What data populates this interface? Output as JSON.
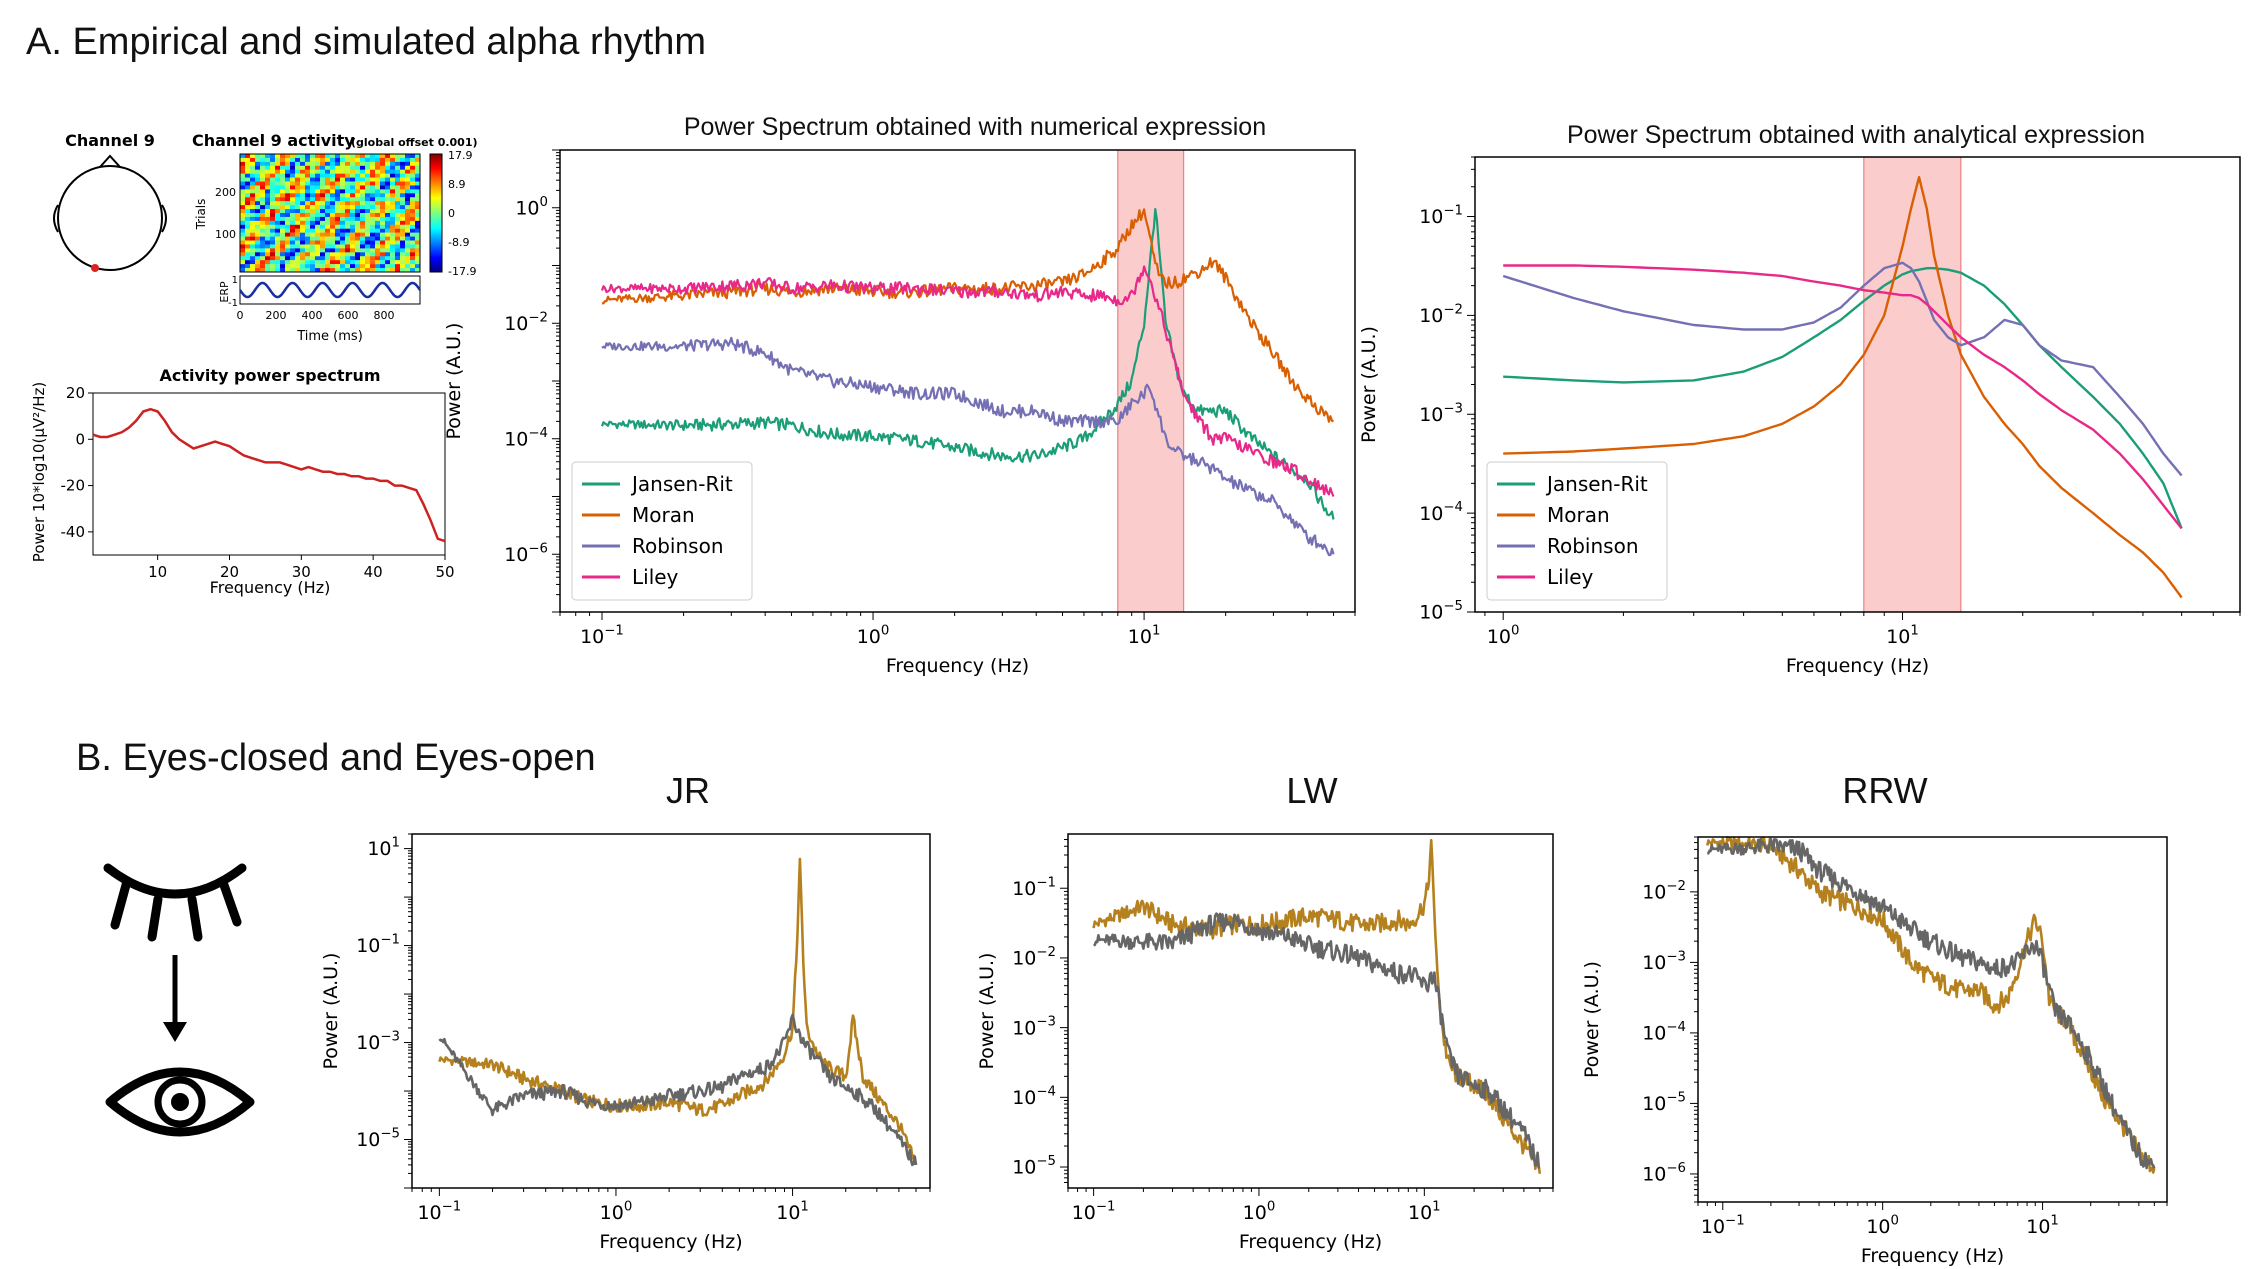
{
  "sections": {
    "a_title": "A. Empirical and simulated alpha rhythm",
    "b_title": "B. Eyes-closed and Eyes-open"
  },
  "eeglab": {
    "channel_label": "Channel 9",
    "erp_image_title": "Channel 9 activity",
    "erp_image_note": "(global offset 0.001)",
    "trials_label": "Trials",
    "trial_ticks": [
      "200",
      "100"
    ],
    "colorbar_ticks": [
      "17.9",
      "8.9",
      "0",
      "-8.9",
      "-17.9"
    ],
    "erp_label": "ERP",
    "erp_ticks": [
      "1",
      "-1"
    ],
    "time_label": "Time (ms)",
    "time_ticks": [
      "0",
      "200",
      "400",
      "600",
      "800"
    ],
    "spectrum_title": "Activity power spectrum",
    "spectrum_ylabel": "Power 10*log10(μV²/Hz)",
    "spectrum_xlabel": "Frequency (Hz)",
    "spectrum_yticks": [
      "20",
      "0",
      "-20",
      "-40"
    ],
    "spectrum_xticks": [
      "10",
      "20",
      "30",
      "40",
      "50"
    ]
  },
  "colors": {
    "jansen_rit": "#1b9e77",
    "moran": "#d95f02",
    "robinson": "#7570b3",
    "liley": "#e7298a",
    "eyes_closed": "#b5811f",
    "eyes_open": "#666666",
    "alpha_band": "#f7a3a3",
    "eeg_spectrum": "#cc2222"
  },
  "chart_data": [
    {
      "id": "eeglab_spectrum",
      "type": "line",
      "title": "Activity power spectrum",
      "xlabel": "Frequency (Hz)",
      "ylabel": "Power 10*log10(μV²/Hz)",
      "xlim": [
        1,
        50
      ],
      "ylim": [
        -50,
        20
      ],
      "series": [
        {
          "x": [
            1,
            2,
            3,
            4,
            5,
            6,
            7,
            8,
            9,
            10,
            11,
            12,
            13,
            14,
            15,
            16,
            17,
            18,
            19,
            20,
            21,
            22,
            23,
            24,
            25,
            26,
            27,
            28,
            29,
            30,
            31,
            32,
            33,
            34,
            35,
            36,
            37,
            38,
            39,
            40,
            41,
            42,
            43,
            44,
            45,
            46,
            47,
            48,
            49,
            50
          ],
          "values": [
            2,
            1,
            1,
            2,
            3,
            5,
            8,
            12,
            13,
            12,
            8,
            3,
            0,
            -2,
            -4,
            -3,
            -2,
            -1,
            -2,
            -3,
            -5,
            -7,
            -8,
            -9,
            -10,
            -10,
            -10,
            -11,
            -12,
            -13,
            -12,
            -13,
            -14,
            -14,
            -15,
            -15,
            -16,
            -16,
            -17,
            -17,
            -18,
            -18,
            -20,
            -20,
            -21,
            -22,
            -28,
            -35,
            -43,
            -44
          ]
        }
      ]
    },
    {
      "id": "numerical",
      "type": "line",
      "title": "Power Spectrum obtained with numerical expression",
      "xlabel": "Frequency (Hz)",
      "ylabel": "Power (A.U.)",
      "xscale": "log",
      "yscale": "log",
      "xlim": [
        0.07,
        60
      ],
      "ylim": [
        1e-07,
        10
      ],
      "xticks": [
        "10^-1",
        "10^0",
        "10^1"
      ],
      "yticks": [
        "10^-6",
        "10^-4",
        "10^-2",
        "10^0"
      ],
      "shaded_band": [
        8,
        14
      ],
      "legend": "lower-left",
      "x": [
        0.1,
        0.2,
        0.3,
        0.4,
        0.5,
        0.7,
        1,
        1.5,
        2,
        3,
        4,
        5,
        6,
        7,
        8,
        9,
        10,
        10.5,
        11,
        11.5,
        12,
        13,
        14,
        16,
        18,
        20,
        25,
        30,
        35,
        40,
        45,
        50
      ],
      "series": [
        {
          "name": "Jansen-Rit",
          "color_key": "jansen_rit",
          "values": [
            0.00018,
            0.00017,
            0.00018,
            0.00019,
            0.00017,
            0.00012,
            0.00011,
            9e-05,
            7e-05,
            5e-05,
            5e-05,
            7e-05,
            0.0001,
            0.0002,
            0.0004,
            0.001,
            0.01,
            0.1,
            1,
            0.1,
            0.01,
            0.002,
            0.0006,
            0.0003,
            0.0003,
            0.0003,
            0.0001,
            5e-05,
            3e-05,
            2e-05,
            8e-06,
            4e-06
          ]
        },
        {
          "name": "Moran",
          "color_key": "moran",
          "values": [
            0.025,
            0.03,
            0.035,
            0.04,
            0.035,
            0.04,
            0.035,
            0.035,
            0.04,
            0.04,
            0.045,
            0.05,
            0.07,
            0.12,
            0.2,
            0.5,
            0.9,
            0.3,
            0.1,
            0.06,
            0.05,
            0.05,
            0.06,
            0.08,
            0.12,
            0.06,
            0.01,
            0.003,
            0.001,
            0.0005,
            0.0003,
            0.0002
          ]
        },
        {
          "name": "Robinson",
          "color_key": "robinson",
          "values": [
            0.004,
            0.004,
            0.0045,
            0.003,
            0.0015,
            0.001,
            0.0008,
            0.0006,
            0.0006,
            0.0003,
            0.0003,
            0.0002,
            0.0002,
            0.0002,
            0.0002,
            0.0004,
            0.0006,
            0.0008,
            0.0004,
            0.0002,
            0.0001,
            6e-05,
            5e-05,
            4e-05,
            3e-05,
            2e-05,
            1.2e-05,
            8e-06,
            4e-06,
            2e-06,
            1.5e-06,
            1e-06
          ]
        },
        {
          "name": "Liley",
          "color_key": "liley",
          "values": [
            0.04,
            0.04,
            0.045,
            0.05,
            0.04,
            0.045,
            0.04,
            0.04,
            0.035,
            0.035,
            0.03,
            0.035,
            0.03,
            0.03,
            0.025,
            0.03,
            0.1,
            0.06,
            0.03,
            0.015,
            0.008,
            0.002,
            0.0006,
            0.0002,
            0.0001,
            0.0001,
            6e-05,
            4e-05,
            3e-05,
            2e-05,
            1.5e-05,
            1e-05
          ]
        }
      ]
    },
    {
      "id": "analytical",
      "type": "line",
      "title": "Power Spectrum obtained with analytical expression",
      "xlabel": "Frequency (Hz)",
      "ylabel": "Power (A.U.)",
      "xscale": "log",
      "yscale": "log",
      "xlim": [
        0.85,
        70
      ],
      "ylim": [
        1e-05,
        0.4
      ],
      "xticks": [
        "10^0",
        "10^1"
      ],
      "yticks": [
        "10^-5",
        "10^-4",
        "10^-3",
        "10^-2",
        "10^-1"
      ],
      "shaded_band": [
        8,
        14
      ],
      "legend": "lower-left",
      "x": [
        1,
        1.5,
        2,
        3,
        4,
        5,
        6,
        7,
        8,
        9,
        10,
        10.5,
        11,
        11.5,
        12,
        13,
        14,
        16,
        18,
        20,
        22,
        25,
        30,
        35,
        40,
        45,
        50
      ],
      "series": [
        {
          "name": "Jansen-Rit",
          "color_key": "jansen_rit",
          "values": [
            0.0024,
            0.0022,
            0.0021,
            0.0022,
            0.0027,
            0.0038,
            0.006,
            0.009,
            0.014,
            0.02,
            0.026,
            0.028,
            0.029,
            0.03,
            0.03,
            0.029,
            0.027,
            0.02,
            0.013,
            0.008,
            0.005,
            0.003,
            0.0015,
            0.0008,
            0.0004,
            0.0002,
            7e-05
          ]
        },
        {
          "name": "Moran",
          "color_key": "moran",
          "values": [
            0.0004,
            0.00042,
            0.00045,
            0.0005,
            0.0006,
            0.0008,
            0.0012,
            0.002,
            0.004,
            0.01,
            0.05,
            0.12,
            0.25,
            0.12,
            0.04,
            0.01,
            0.004,
            0.0015,
            0.0008,
            0.0005,
            0.0003,
            0.00018,
            0.0001,
            6e-05,
            4e-05,
            2.5e-05,
            1.4e-05
          ]
        },
        {
          "name": "Robinson",
          "color_key": "robinson",
          "values": [
            0.025,
            0.015,
            0.011,
            0.008,
            0.0072,
            0.0072,
            0.0085,
            0.012,
            0.02,
            0.03,
            0.034,
            0.03,
            0.022,
            0.014,
            0.009,
            0.006,
            0.005,
            0.006,
            0.009,
            0.008,
            0.005,
            0.0035,
            0.003,
            0.0015,
            0.0008,
            0.0004,
            0.00024
          ]
        },
        {
          "name": "Liley",
          "color_key": "liley",
          "values": [
            0.032,
            0.032,
            0.031,
            0.029,
            0.027,
            0.025,
            0.022,
            0.02,
            0.018,
            0.017,
            0.016,
            0.016,
            0.015,
            0.013,
            0.011,
            0.008,
            0.006,
            0.004,
            0.003,
            0.0022,
            0.0016,
            0.0011,
            0.0007,
            0.0004,
            0.00022,
            0.00012,
            7e-05
          ]
        }
      ]
    },
    {
      "id": "jr",
      "type": "line",
      "title": "JR",
      "xlabel": "Frequency (Hz)",
      "ylabel": "Power (A.U.)",
      "xscale": "log",
      "yscale": "log",
      "xlim": [
        0.07,
        60
      ],
      "ylim": [
        1e-06,
        20
      ],
      "xticks": [
        "10^-1",
        "10^0",
        "10^1"
      ],
      "yticks": [
        "10^-5",
        "10^-3",
        "10^-1",
        "10^1"
      ],
      "x": [
        0.1,
        0.2,
        0.3,
        0.5,
        0.7,
        1,
        1.5,
        2,
        3,
        4,
        5,
        7,
        8,
        9,
        10,
        10.5,
        11,
        11.5,
        12,
        14,
        16,
        20,
        22,
        25,
        30,
        40,
        50
      ],
      "series": [
        {
          "color_key": "eyes_closed",
          "values": [
            0.00045,
            0.00035,
            0.00018,
            0.0001,
            6e-05,
            5e-05,
            5e-05,
            6e-05,
            4e-05,
            5e-05,
            8e-05,
            0.00015,
            0.0003,
            0.0006,
            0.002,
            0.05,
            5,
            0.05,
            0.002,
            0.0005,
            0.0003,
            0.0002,
            0.003,
            0.0002,
            8e-05,
            2e-05,
            3e-06
          ]
        },
        {
          "color_key": "eyes_open",
          "values": [
            0.0014,
            4e-05,
            8e-05,
            0.0001,
            6e-05,
            5e-05,
            6e-05,
            8e-05,
            0.0001,
            0.00012,
            0.0002,
            0.0003,
            0.0005,
            0.001,
            0.003,
            0.002,
            0.0015,
            0.001,
            0.0008,
            0.0004,
            0.0002,
            0.00012,
            0.0001,
            7e-05,
            4e-05,
            1e-05,
            3e-06
          ]
        }
      ]
    },
    {
      "id": "lw",
      "type": "line",
      "title": "LW",
      "xlabel": "Frequency (Hz)",
      "ylabel": "Power (A.U.)",
      "xscale": "log",
      "yscale": "log",
      "xlim": [
        0.07,
        60
      ],
      "ylim": [
        5e-06,
        0.6
      ],
      "xticks": [
        "10^-1",
        "10^0",
        "10^1"
      ],
      "yticks": [
        "10^-5",
        "10^-4",
        "10^-3",
        "10^-2",
        "10^-1"
      ],
      "x": [
        0.1,
        0.2,
        0.3,
        0.5,
        0.7,
        1,
        1.5,
        2,
        3,
        4,
        5,
        7,
        8,
        9,
        10,
        10.5,
        11,
        11.5,
        12,
        13,
        14,
        16,
        20,
        25,
        30,
        40,
        50
      ],
      "series": [
        {
          "color_key": "eyes_closed",
          "values": [
            0.03,
            0.055,
            0.03,
            0.025,
            0.03,
            0.03,
            0.035,
            0.04,
            0.035,
            0.03,
            0.03,
            0.035,
            0.03,
            0.04,
            0.06,
            0.1,
            0.4,
            0.05,
            0.005,
            0.0008,
            0.0003,
            0.0002,
            0.00015,
            0.0001,
            5e-05,
            2e-05,
            8e-06
          ]
        },
        {
          "color_key": "eyes_open",
          "values": [
            0.018,
            0.017,
            0.016,
            0.03,
            0.035,
            0.025,
            0.02,
            0.015,
            0.012,
            0.01,
            0.008,
            0.006,
            0.006,
            0.005,
            0.004,
            0.004,
            0.006,
            0.005,
            0.003,
            0.001,
            0.0004,
            0.0002,
            0.00015,
            0.00012,
            7e-05,
            3e-05,
            1e-05
          ]
        }
      ]
    },
    {
      "id": "rrw",
      "type": "line",
      "title": "RRW",
      "xlabel": "Frequency (Hz)",
      "ylabel": "Power (A.U.)",
      "xscale": "log",
      "yscale": "log",
      "xlim": [
        0.07,
        60
      ],
      "ylim": [
        4e-07,
        0.06
      ],
      "xticks": [
        "10^-1",
        "10^0",
        "10^1"
      ],
      "yticks": [
        "10^-6",
        "10^-5",
        "10^-4",
        "10^-3",
        "10^-2"
      ],
      "x": [
        0.08,
        0.1,
        0.2,
        0.3,
        0.4,
        0.5,
        0.7,
        1,
        1.5,
        2,
        3,
        4,
        5,
        6,
        7,
        8,
        9,
        10,
        11,
        12,
        14,
        16,
        20,
        25,
        30,
        40,
        50
      ],
      "series": [
        {
          "color_key": "eyes_closed",
          "values": [
            0.05,
            0.05,
            0.045,
            0.02,
            0.01,
            0.008,
            0.006,
            0.004,
            0.001,
            0.0006,
            0.0004,
            0.0004,
            0.00025,
            0.0003,
            0.0008,
            0.002,
            0.004,
            0.002,
            0.0003,
            0.0002,
            0.00015,
            8e-05,
            3e-05,
            1e-05,
            6e-06,
            2e-06,
            1.2e-06
          ]
        },
        {
          "color_key": "eyes_open",
          "values": [
            0.04,
            0.04,
            0.045,
            0.04,
            0.02,
            0.015,
            0.01,
            0.006,
            0.003,
            0.002,
            0.0012,
            0.001,
            0.0008,
            0.0009,
            0.001,
            0.0015,
            0.0018,
            0.001,
            0.0004,
            0.0002,
            0.00015,
            0.0001,
            4e-05,
            1.5e-05,
            6e-06,
            2e-06,
            1.2e-06
          ]
        }
      ]
    }
  ]
}
